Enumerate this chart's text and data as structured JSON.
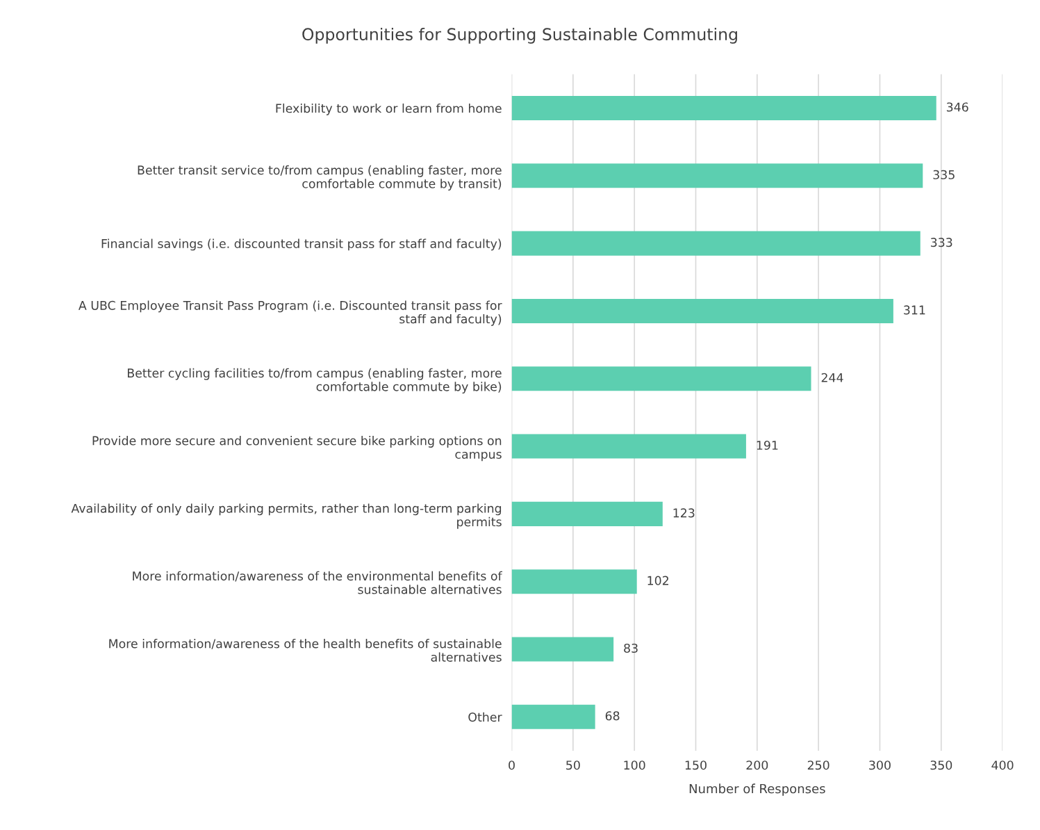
{
  "chart_data": {
    "type": "bar",
    "orientation": "horizontal",
    "title": "Opportunities for Supporting Sustainable Commuting",
    "xlabel": "Number of Responses",
    "categories": [
      "Flexibility to work or learn from home",
      "Better transit service to/from campus (enabling faster, more\ncomfortable commute by transit)",
      "Financial savings (i.e. discounted transit pass for staff and faculty)",
      "A UBC Employee Transit Pass Program (i.e. Discounted transit pass for\nstaff and faculty)",
      "Better cycling facilities to/from campus (enabling faster, more\ncomfortable commute by bike)",
      "Provide more secure and convenient secure bike parking options on\ncampus",
      "Availability of only daily parking permits, rather than long-term parking\npermits",
      "More information/awareness of the environmental benefits of\nsustainable alternatives",
      "More information/awareness of the health benefits of sustainable\nalternatives",
      "Other"
    ],
    "values": [
      346,
      335,
      333,
      311,
      244,
      191,
      123,
      102,
      83,
      68
    ],
    "color": "#5ccfb0",
    "xlim": [
      0,
      400
    ],
    "xticks": [
      0,
      50,
      100,
      150,
      200,
      250,
      300,
      350,
      400
    ],
    "grid": "x",
    "data_labels": true
  }
}
